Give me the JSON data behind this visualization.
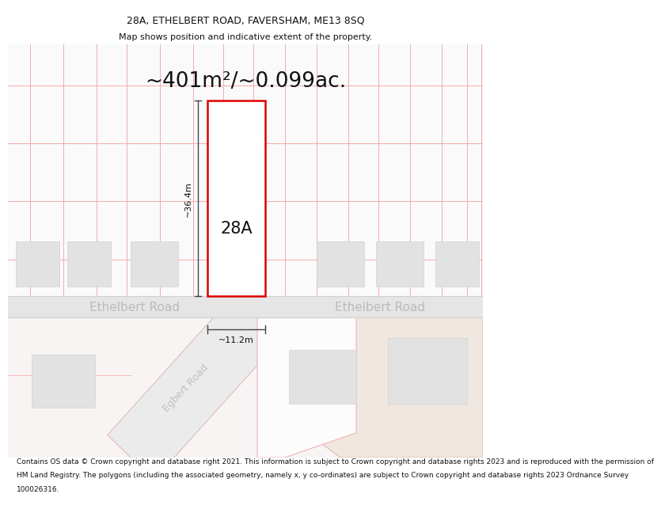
{
  "title_line1": "28A, ETHELBERT ROAD, FAVERSHAM, ME13 8SQ",
  "title_line2": "Map shows position and indicative extent of the property.",
  "area_text": "~401m²/~0.099ac.",
  "label_28A": "28A",
  "dim_height": "~36.4m",
  "dim_width": "~11.2m",
  "road_label_left": "Ethelbert Road",
  "road_label_right": "Ethelbert Road",
  "road_label_diagonal": "Egbert Road",
  "footer_lines": [
    "Contains OS data © Crown copyright and database right 2021. This information is subject to Crown copyright and database rights 2023 and is reproduced with the permission of",
    "HM Land Registry. The polygons (including the associated geometry, namely x, y co-ordinates) are subject to Crown copyright and database rights 2023 Ordnance Survey",
    "100026316."
  ],
  "bg_color": "#ffffff",
  "map_bg": "#fafafa",
  "grid_line_color": "#f5aaaa",
  "road_color": "#e8e8e8",
  "plot_outline_color": "#dd0000",
  "building_color": "#e2e2e2",
  "building_edge_color": "#cccccc",
  "dim_line_color": "#444444",
  "text_color_dark": "#111111",
  "road_text_color": "#bbbbbb",
  "title_fontsize": 9,
  "subtitle_fontsize": 8,
  "area_fontsize": 19,
  "label_fontsize": 15,
  "dim_fontsize": 8,
  "road_fontsize": 11,
  "footer_fontsize": 6.5
}
